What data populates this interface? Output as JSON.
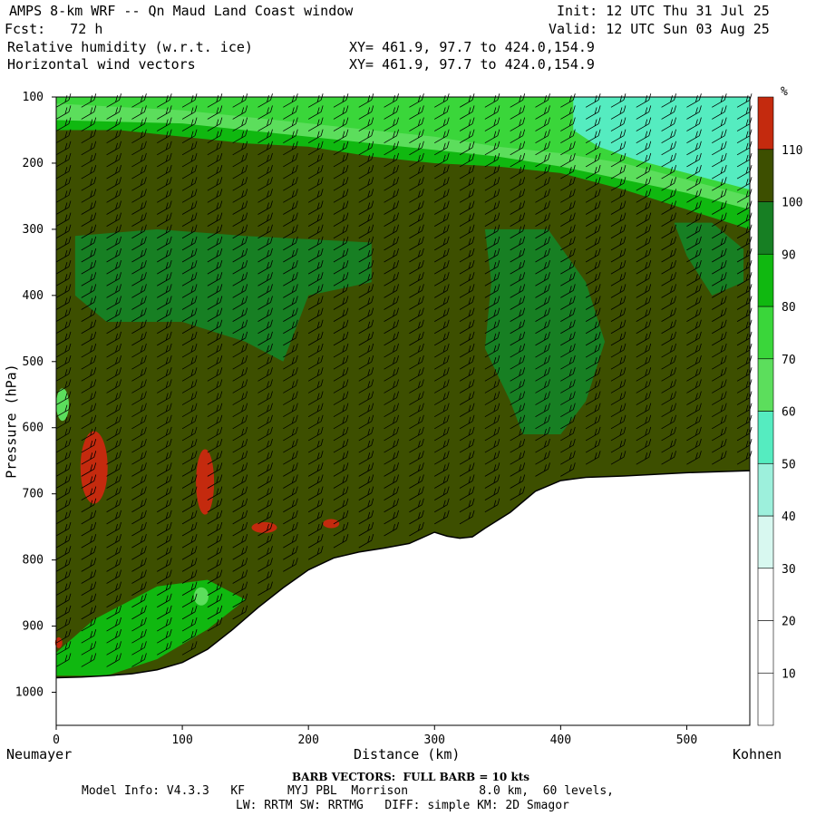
{
  "header": {
    "line1_left": "AMPS 8-km WRF -- Qn Maud Land Coast window",
    "line1_right": "Init: 12 UTC Thu 31 Jul 25",
    "line2_left": "Fcst:   72 h",
    "line2_right": "Valid: 12 UTC Sun 03 Aug 25",
    "line3_left": "Relative humidity (w.r.t. ice)",
    "line3_right": "XY= 461.9, 97.7 to 424.0,154.9",
    "line4_left": "Horizontal wind vectors",
    "line4_right": "XY= 461.9, 97.7 to 424.0,154.9"
  },
  "footer": {
    "barb_note": "BARB VECTORS:  FULL BARB = 10 kts",
    "model_info": "Model Info: V4.3.3   KF      MYJ PBL  Morrison          8.0 km,  60 levels,",
    "physics": "LW: RRTM SW: RRTMG   DIFF: simple KM: 2D Smagor"
  },
  "endpoints": {
    "left": "Neumayer",
    "right": "Kohnen"
  },
  "colorbar": {
    "unit": "%",
    "levels": [
      10,
      20,
      30,
      40,
      50,
      60,
      70,
      80,
      90,
      100,
      110
    ],
    "colors": [
      "#ffffff",
      "#ffffff",
      "#ffffff",
      "#d8f8f0",
      "#9df0dc",
      "#55ecc0",
      "#5cde5c",
      "#3ad63a",
      "#10b810",
      "#177f23",
      "#3d4f00",
      "#c42a0e"
    ]
  },
  "chart_data": {
    "type": "heatmap",
    "title": "",
    "xlabel": "Distance (km)",
    "ylabel": "Pressure (hPa)",
    "xlim": [
      0,
      550
    ],
    "ylim": [
      1050,
      100
    ],
    "xticks": [
      0,
      100,
      200,
      300,
      400,
      500
    ],
    "yticks": [
      100,
      200,
      300,
      400,
      500,
      600,
      700,
      800,
      900,
      1000
    ],
    "terrain_surface_pressure": {
      "x": [
        0,
        20,
        40,
        60,
        80,
        100,
        120,
        140,
        160,
        180,
        200,
        220,
        240,
        260,
        280,
        300,
        310,
        320,
        330,
        340,
        360,
        380,
        400,
        420,
        450,
        500,
        550
      ],
      "p": [
        978,
        977,
        975,
        972,
        966,
        955,
        935,
        905,
        872,
        842,
        815,
        797,
        788,
        782,
        775,
        758,
        764,
        767,
        765,
        752,
        728,
        696,
        680,
        675,
        673,
        668,
        665
      ]
    },
    "rh_regions": [
      {
        "label": "110",
        "note": "ice-supersaturated patches",
        "x": [
          15,
          45
        ],
        "p": [
          600,
          735
        ]
      },
      {
        "label": "110",
        "x": [
          105,
          130
        ],
        "p": [
          630,
          735
        ]
      },
      {
        "label": "110",
        "x": [
          145,
          175
        ],
        "p": [
          740,
          760
        ]
      },
      {
        "label": "110",
        "x": [
          210,
          225
        ],
        "p": [
          738,
          752
        ]
      },
      {
        "label": "80-90",
        "x": [
          20,
          250
        ],
        "p": [
          300,
          500
        ]
      },
      {
        "label": "80-90",
        "x": [
          340,
          420
        ],
        "p": [
          320,
          630
        ]
      },
      {
        "label": "40-70",
        "note": "dry upper layer",
        "x": [
          0,
          550
        ],
        "p": [
          100,
          280
        ]
      }
    ],
    "wind_barbs": "Horizontal wind barbs, full barb = 10 kts"
  }
}
